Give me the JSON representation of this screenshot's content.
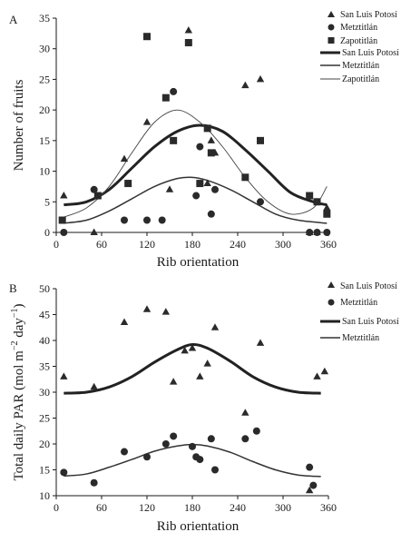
{
  "chart_data": [
    {
      "panel": "A",
      "type": "scatter",
      "xlabel": "Rib orientation",
      "ylabel": "Number of fruits",
      "xlim": [
        0,
        360
      ],
      "ylim": [
        0,
        35
      ],
      "xticks": [
        0,
        60,
        120,
        180,
        240,
        300,
        360
      ],
      "yticks": [
        0,
        5,
        10,
        15,
        20,
        25,
        30,
        35
      ],
      "grid": false,
      "legend": "top-right",
      "series": [
        {
          "name": "San Luis Potosí",
          "marker": "triangle",
          "points": [
            [
              10,
              6
            ],
            [
              50,
              0
            ],
            [
              90,
              12
            ],
            [
              120,
              18
            ],
            [
              150,
              7
            ],
            [
              175,
              33
            ],
            [
              200,
              8
            ],
            [
              205,
              15
            ],
            [
              210,
              13
            ],
            [
              250,
              24
            ],
            [
              270,
              25
            ],
            [
              335,
              0
            ],
            [
              345,
              0
            ],
            [
              358,
              4
            ]
          ]
        },
        {
          "name": "Metztitlán",
          "marker": "circle",
          "points": [
            [
              10,
              0
            ],
            [
              50,
              7
            ],
            [
              90,
              2
            ],
            [
              120,
              2
            ],
            [
              140,
              2
            ],
            [
              155,
              23
            ],
            [
              185,
              6
            ],
            [
              190,
              14
            ],
            [
              205,
              3
            ],
            [
              210,
              7
            ],
            [
              270,
              5
            ],
            [
              335,
              0
            ],
            [
              345,
              0
            ],
            [
              358,
              0
            ]
          ]
        },
        {
          "name": "Zapotitlán",
          "marker": "square",
          "points": [
            [
              8,
              2
            ],
            [
              55,
              6
            ],
            [
              95,
              8
            ],
            [
              120,
              32
            ],
            [
              145,
              22
            ],
            [
              155,
              15
            ],
            [
              175,
              31
            ],
            [
              190,
              8
            ],
            [
              200,
              17
            ],
            [
              205,
              13
            ],
            [
              250,
              9
            ],
            [
              270,
              15
            ],
            [
              335,
              6
            ],
            [
              345,
              5
            ],
            [
              358,
              3
            ]
          ]
        }
      ],
      "curves": [
        {
          "name": "San Luis Potosí",
          "style": "thick",
          "x": [
            10,
            40,
            70,
            100,
            130,
            160,
            190,
            220,
            250,
            280,
            310,
            340,
            358
          ],
          "y": [
            4.5,
            5,
            7,
            10.5,
            14,
            16.5,
            17.5,
            16.5,
            13.5,
            10,
            6.5,
            5,
            4.5
          ]
        },
        {
          "name": "Metztitlán",
          "style": "medium",
          "x": [
            10,
            40,
            70,
            100,
            130,
            160,
            180,
            200,
            230,
            260,
            290,
            320,
            358
          ],
          "y": [
            1.5,
            2,
            3.5,
            5.5,
            7.5,
            8.8,
            9,
            8.5,
            7,
            5,
            3,
            2,
            1.5
          ]
        },
        {
          "name": "Zapotitlán",
          "style": "thin",
          "x": [
            10,
            40,
            70,
            100,
            130,
            160,
            190,
            220,
            250,
            280,
            310,
            340,
            358
          ],
          "y": [
            2.5,
            4,
            7.5,
            13,
            18,
            20,
            18,
            14,
            9,
            5,
            3,
            4,
            7.5
          ]
        }
      ]
    },
    {
      "panel": "B",
      "type": "scatter",
      "xlabel": "Rib orientation",
      "ylabel_main": "Total daily PAR (mol m",
      "ylabel_exp1": "−2",
      "ylabel_mid": " day",
      "ylabel_exp2": "−1",
      "ylabel_end": ")",
      "xlim": [
        0,
        360
      ],
      "ylim": [
        10,
        50
      ],
      "xticks": [
        0,
        60,
        120,
        180,
        240,
        300,
        360
      ],
      "yticks": [
        10,
        15,
        20,
        25,
        30,
        35,
        40,
        45,
        50
      ],
      "grid": false,
      "legend": "top-right",
      "series": [
        {
          "name": "San Luis Potosí",
          "marker": "triangle",
          "points": [
            [
              10,
              33
            ],
            [
              50,
              31
            ],
            [
              90,
              43.5
            ],
            [
              120,
              46
            ],
            [
              145,
              45.5
            ],
            [
              155,
              32
            ],
            [
              170,
              38
            ],
            [
              180,
              38.5
            ],
            [
              190,
              33
            ],
            [
              200,
              35.5
            ],
            [
              210,
              42.5
            ],
            [
              250,
              26
            ],
            [
              270,
              39.5
            ],
            [
              335,
              11
            ],
            [
              345,
              33
            ],
            [
              355,
              34
            ]
          ]
        },
        {
          "name": "Metztitlán",
          "marker": "circle",
          "points": [
            [
              10,
              14.5
            ],
            [
              50,
              12.5
            ],
            [
              90,
              18.5
            ],
            [
              120,
              17.5
            ],
            [
              145,
              20
            ],
            [
              155,
              21.5
            ],
            [
              180,
              19.5
            ],
            [
              185,
              17.5
            ],
            [
              190,
              17
            ],
            [
              205,
              21
            ],
            [
              210,
              15
            ],
            [
              250,
              21
            ],
            [
              265,
              22.5
            ],
            [
              335,
              15.5
            ],
            [
              340,
              12
            ]
          ]
        }
      ],
      "curves": [
        {
          "name": "San Luis Potosí",
          "style": "thick",
          "x": [
            10,
            40,
            70,
            100,
            130,
            160,
            180,
            200,
            230,
            260,
            290,
            320,
            350
          ],
          "y": [
            29.8,
            30,
            31,
            33,
            35.8,
            38.2,
            39.2,
            38.5,
            36,
            33,
            31,
            30,
            29.8
          ]
        },
        {
          "name": "Metztitlán",
          "style": "medium",
          "x": [
            10,
            40,
            70,
            100,
            130,
            160,
            180,
            200,
            230,
            260,
            290,
            320,
            350
          ],
          "y": [
            13.8,
            14.2,
            15.5,
            17,
            18.6,
            19.6,
            19.9,
            19.6,
            18.4,
            16.6,
            15,
            14,
            13.7
          ]
        }
      ]
    }
  ]
}
